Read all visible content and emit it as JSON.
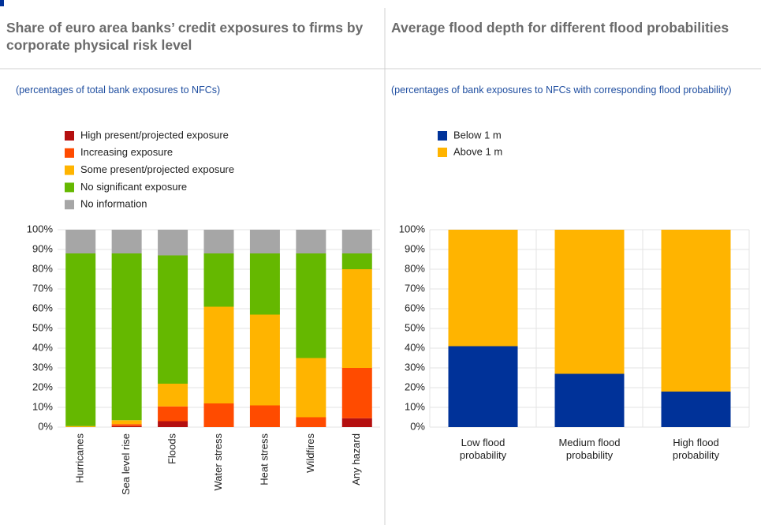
{
  "chart_data": [
    {
      "type": "bar",
      "stacked": true,
      "title": "Share of euro area banks’ credit exposures to firms by corporate physical risk level",
      "subtitle": "(percentages of total bank exposures to NFCs)",
      "categories": [
        "Hurricanes",
        "Sea level rise",
        "Floods",
        "Water stress",
        "Heat stress",
        "Wildfires",
        "Any hazard"
      ],
      "series": [
        {
          "name": "High present/projected exposure",
          "color": "#b40f0f",
          "values": [
            0,
            0.5,
            3,
            0,
            0,
            0,
            4.5
          ]
        },
        {
          "name": "Increasing exposure",
          "color": "#ff4b00",
          "values": [
            0,
            1,
            7.5,
            12,
            11,
            5,
            25.5
          ]
        },
        {
          "name": "Some present/projected exposure",
          "color": "#ffb400",
          "values": [
            0.5,
            2,
            11.5,
            49,
            46,
            30,
            50
          ]
        },
        {
          "name": "No significant exposure",
          "color": "#65b800",
          "values": [
            87.5,
            84.5,
            65,
            27,
            31,
            53,
            8
          ]
        },
        {
          "name": "No information",
          "color": "#a6a6a6",
          "values": [
            12,
            12,
            13,
            12,
            12,
            12,
            12
          ]
        }
      ],
      "ylim": [
        0,
        100
      ],
      "yticks": [
        {
          "value": 0,
          "label": "0%"
        },
        {
          "value": 10,
          "label": "10%"
        },
        {
          "value": 20,
          "label": "20%"
        },
        {
          "value": 30,
          "label": "30%"
        },
        {
          "value": 40,
          "label": "40%"
        },
        {
          "value": 50,
          "label": "50%"
        },
        {
          "value": 60,
          "label": "60%"
        },
        {
          "value": 70,
          "label": "70%"
        },
        {
          "value": 80,
          "label": "80%"
        },
        {
          "value": 90,
          "label": "90%"
        },
        {
          "value": 100,
          "label": "100%"
        }
      ],
      "grid": true
    },
    {
      "type": "bar",
      "stacked": true,
      "title": "Average flood depth for different flood probabilities",
      "subtitle": "(percentages of bank exposures to NFCs with corresponding flood probability)",
      "categories": [
        "Low flood probability",
        "Medium flood probability",
        "High flood probability"
      ],
      "series": [
        {
          "name": "Below 1 m",
          "color": "#003299",
          "values": [
            41,
            27,
            18
          ]
        },
        {
          "name": "Above 1 m",
          "color": "#ffb400",
          "values": [
            59,
            73,
            82
          ]
        }
      ],
      "ylim": [
        0,
        100
      ],
      "yticks": [
        {
          "value": 0,
          "label": "0%"
        },
        {
          "value": 10,
          "label": "10%"
        },
        {
          "value": 20,
          "label": "20%"
        },
        {
          "value": 30,
          "label": "30%"
        },
        {
          "value": 40,
          "label": "40%"
        },
        {
          "value": 50,
          "label": "50%"
        },
        {
          "value": 60,
          "label": "60%"
        },
        {
          "value": 70,
          "label": "70%"
        },
        {
          "value": 80,
          "label": "80%"
        },
        {
          "value": 90,
          "label": "90%"
        },
        {
          "value": 100,
          "label": "100%"
        }
      ],
      "grid": true
    }
  ]
}
